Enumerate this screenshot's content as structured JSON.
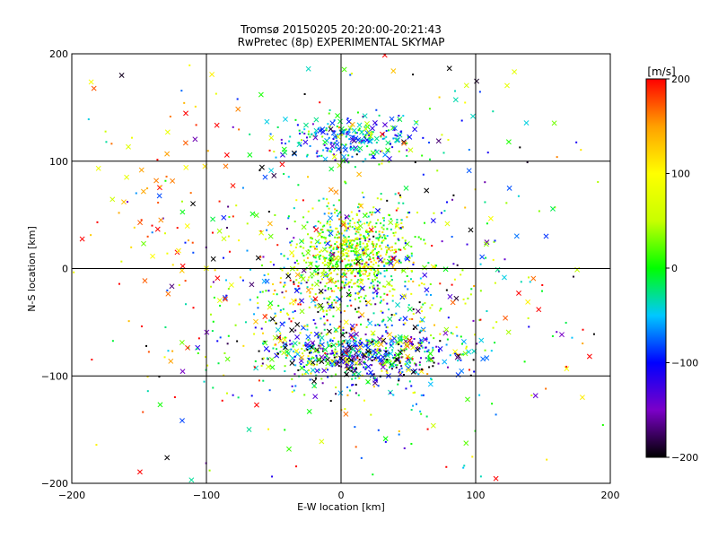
{
  "chart_data": {
    "type": "scatter",
    "title": "Tromsø 20150205 20:20:00-20:21:43",
    "subtitle": "RwPretec (8p) EXPERIMENTAL SKYMAP",
    "xlabel": "E-W location [km]",
    "ylabel": "N-S location [km]",
    "xlim": [
      -200,
      200
    ],
    "ylim": [
      -200,
      200
    ],
    "x_ticks": [
      -200,
      -100,
      0,
      100,
      200
    ],
    "y_ticks": [
      -200,
      -100,
      0,
      100,
      200
    ],
    "x_tick_labels": [
      "−200",
      "−100",
      "0",
      "100",
      "200"
    ],
    "y_tick_labels": [
      "−200",
      "−100",
      "0",
      "100",
      "200"
    ],
    "grid": true,
    "colorbar": {
      "label": "[m/s]",
      "range": [
        -200,
        200
      ],
      "ticks": [
        200,
        100,
        0,
        -100,
        -200
      ],
      "tick_labels": [
        "200",
        "100",
        "0",
        "−100",
        "−200"
      ],
      "colormap": [
        "#000000",
        "#7b00c8",
        "#0000ff",
        "#00c8ff",
        "#00ff00",
        "#c8ff00",
        "#ffff00",
        "#ffa000",
        "#ff0000"
      ]
    },
    "marker_types": [
      "dot",
      "x"
    ],
    "clusters": [
      {
        "cx": 10,
        "cy": 15,
        "sx": 22,
        "sy": 22,
        "count": 700,
        "vmean": 40,
        "vsd": 60,
        "x_fraction": 0.05
      },
      {
        "cx": 5,
        "cy": 120,
        "sx": 25,
        "sy": 12,
        "count": 260,
        "vmean": -60,
        "vsd": 60,
        "x_fraction": 0.3
      },
      {
        "cx": 20,
        "cy": -80,
        "sx": 35,
        "sy": 12,
        "count": 520,
        "vmean": -80,
        "vsd": 100,
        "x_fraction": 0.35
      },
      {
        "cx": 0,
        "cy": -40,
        "sx": 40,
        "sy": 40,
        "count": 450,
        "vmean": 0,
        "vsd": 110,
        "x_fraction": 0.15
      },
      {
        "cx": 0,
        "cy": 0,
        "sx": 95,
        "sy": 95,
        "count": 520,
        "vmean": 0,
        "vsd": 130,
        "x_fraction": 0.3
      },
      {
        "cx": -130,
        "cy": 60,
        "sx": 30,
        "sy": 60,
        "count": 70,
        "vmean": 150,
        "vsd": 50,
        "x_fraction": 0.5
      }
    ]
  }
}
